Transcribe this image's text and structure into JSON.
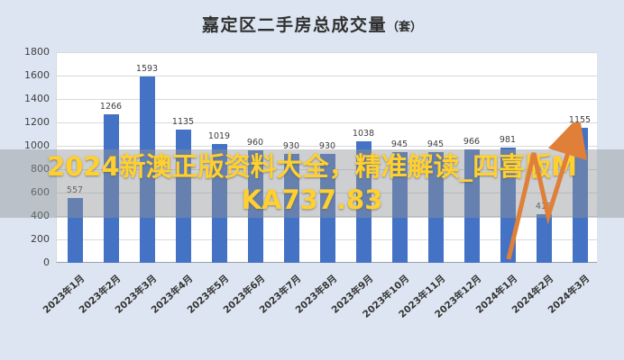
{
  "header": {
    "title_main": "嘉定区二手房总成交量",
    "title_suffix": "（套）"
  },
  "watermark": {
    "text": "2024新澳正版资料大全，精准解读_四喜版MKA737.83",
    "color": "#ffd02e",
    "band_color": "rgba(145,148,152,0.45)"
  },
  "chart_data": {
    "type": "bar",
    "title": "嘉定区二手房总成交量（套）",
    "categories": [
      "2023年1月",
      "2023年2月",
      "2023年3月",
      "2023年4月",
      "2023年5月",
      "2023年6月",
      "2023年7月",
      "2023年8月",
      "2023年9月",
      "2023年10月",
      "2023年11月",
      "2023年12月",
      "2024年1月",
      "2024年2月",
      "2024年3月"
    ],
    "values": [
      557,
      1266,
      1593,
      1135,
      1019,
      960,
      930,
      930,
      1038,
      945,
      945,
      966,
      981,
      418,
      1155
    ],
    "xlabel": "",
    "ylabel": "",
    "ylim": [
      0,
      1800
    ],
    "ytick_step": 200,
    "grid": true,
    "legend": "none",
    "bar_color": "#4472c4",
    "annotation": {
      "shape": "zigzag-up-trend-arrow",
      "color": "#e07f38",
      "near_category": "2024年2月"
    }
  }
}
